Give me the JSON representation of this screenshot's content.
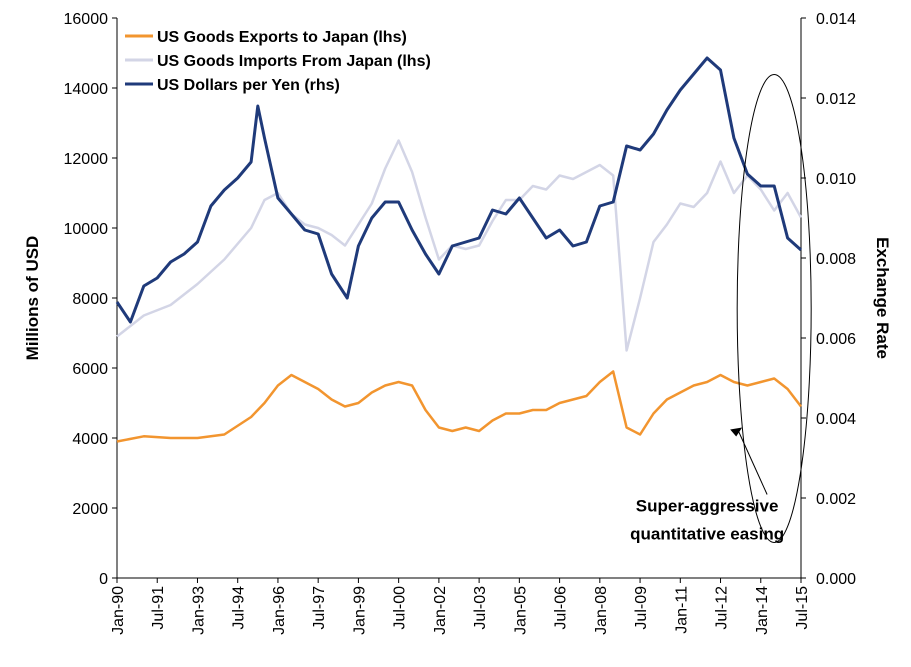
{
  "chart_data": {
    "type": "line",
    "title": "",
    "ylabel": "Millions of USD",
    "y2label": "Exchange Rate",
    "ylim": [
      0,
      16000
    ],
    "y2lim": [
      0,
      0.014
    ],
    "yticks": [
      "0",
      "2000",
      "4000",
      "6000",
      "8000",
      "10000",
      "12000",
      "14000",
      "16000"
    ],
    "y2ticks": [
      "0.000",
      "0.002",
      "0.004",
      "0.006",
      "0.008",
      "0.010",
      "0.012",
      "0.014"
    ],
    "xticks": [
      "Jan-90",
      "Jul-91",
      "Jan-93",
      "Jul-94",
      "Jan-96",
      "Jul-97",
      "Jan-99",
      "Jul-00",
      "Jan-02",
      "Jul-03",
      "Jan-05",
      "Jul-06",
      "Jan-08",
      "Jul-09",
      "Jan-11",
      "Jul-12",
      "Jan-14",
      "Jul-15"
    ],
    "xlim": [
      "Jan-90",
      "Jul-15"
    ],
    "grid": false,
    "legend_position": "top-left",
    "series": [
      {
        "name": "US Goods Exports to Japan (lhs)",
        "axis": "left",
        "color": "#F2952F",
        "x": [
          "Jan-90",
          "Jan-91",
          "Jan-92",
          "Jan-93",
          "Jan-94",
          "Jan-95",
          "Jul-95",
          "Jan-96",
          "Jul-96",
          "Jan-97",
          "Jul-97",
          "Jan-98",
          "Jul-98",
          "Jan-99",
          "Jul-99",
          "Jan-00",
          "Jul-00",
          "Jan-01",
          "Jul-01",
          "Jan-02",
          "Jul-02",
          "Jan-03",
          "Jul-03",
          "Jan-04",
          "Jul-04",
          "Jan-05",
          "Jul-05",
          "Jan-06",
          "Jul-06",
          "Jan-07",
          "Jul-07",
          "Jan-08",
          "Jul-08",
          "Jan-09",
          "Jul-09",
          "Jan-10",
          "Jul-10",
          "Jan-11",
          "Jul-11",
          "Jan-12",
          "Jul-12",
          "Jan-13",
          "Jul-13",
          "Jan-14",
          "Jul-14",
          "Jan-15",
          "Jul-15"
        ],
        "values": [
          3900,
          4050,
          4000,
          4000,
          4100,
          4600,
          5000,
          5500,
          5800,
          5600,
          5400,
          5100,
          4900,
          5000,
          5300,
          5500,
          5600,
          5500,
          4800,
          4300,
          4200,
          4300,
          4200,
          4500,
          4700,
          4700,
          4800,
          4800,
          5000,
          5100,
          5200,
          5600,
          5900,
          4300,
          4100,
          4700,
          5100,
          5300,
          5500,
          5600,
          5800,
          5600,
          5500,
          5600,
          5700,
          5400,
          4900
        ]
      },
      {
        "name": "US Goods Imports From Japan (lhs)",
        "axis": "left",
        "color": "#D3D5E6",
        "x": [
          "Jan-90",
          "Jan-91",
          "Jan-92",
          "Jan-93",
          "Jan-94",
          "Jan-95",
          "Jul-95",
          "Jan-96",
          "Jul-96",
          "Jan-97",
          "Jul-97",
          "Jan-98",
          "Jul-98",
          "Jan-99",
          "Jul-99",
          "Jan-00",
          "Jul-00",
          "Jan-01",
          "Jul-01",
          "Jan-02",
          "Jul-02",
          "Jan-03",
          "Jul-03",
          "Jan-04",
          "Jul-04",
          "Jan-05",
          "Jul-05",
          "Jan-06",
          "Jul-06",
          "Jan-07",
          "Jul-07",
          "Jan-08",
          "Jul-08",
          "Jan-09",
          "Jul-09",
          "Jan-10",
          "Jul-10",
          "Jan-11",
          "Jul-11",
          "Jan-12",
          "Jul-12",
          "Jan-13",
          "Jul-13",
          "Jan-14",
          "Jul-14",
          "Jan-15",
          "Jul-15"
        ],
        "values": [
          6900,
          7500,
          7800,
          8400,
          9100,
          10000,
          10800,
          11000,
          10400,
          10100,
          10000,
          9800,
          9500,
          10100,
          10700,
          11700,
          12500,
          11600,
          10300,
          9100,
          9500,
          9400,
          9500,
          10200,
          10800,
          10800,
          11200,
          11100,
          11500,
          11400,
          11600,
          11800,
          11500,
          6500,
          8000,
          9600,
          10100,
          10700,
          10600,
          11000,
          11900,
          11000,
          11500,
          11100,
          10500,
          11000,
          10300
        ]
      },
      {
        "name": "US Dollars per Yen (rhs)",
        "axis": "right",
        "color": "#1F3A7A",
        "x": [
          "Jan-90",
          "Jul-90",
          "Jan-91",
          "Jul-91",
          "Jan-92",
          "Jul-92",
          "Jan-93",
          "Jul-93",
          "Jan-94",
          "Jul-94",
          "Jan-95",
          "Apr-95",
          "Jul-95",
          "Jan-96",
          "Jul-96",
          "Jan-97",
          "Jul-97",
          "Jan-98",
          "Aug-98",
          "Jan-99",
          "Jul-99",
          "Jan-00",
          "Jul-00",
          "Jan-01",
          "Jul-01",
          "Jan-02",
          "Jul-02",
          "Jan-03",
          "Jul-03",
          "Jan-04",
          "Jul-04",
          "Jan-05",
          "Jul-05",
          "Jan-06",
          "Jul-06",
          "Jan-07",
          "Jul-07",
          "Jan-08",
          "Jul-08",
          "Jan-09",
          "Jul-09",
          "Jan-10",
          "Jul-10",
          "Jan-11",
          "Jul-11",
          "Jan-12",
          "Jul-12",
          "Jan-13",
          "Jul-13",
          "Jan-14",
          "Jul-14",
          "Jan-15",
          "Jul-15"
        ],
        "values": [
          0.0069,
          0.0064,
          0.0073,
          0.0075,
          0.0079,
          0.0081,
          0.0084,
          0.0093,
          0.0097,
          0.01,
          0.0104,
          0.0118,
          0.011,
          0.0095,
          0.0091,
          0.0087,
          0.0086,
          0.0076,
          0.007,
          0.0083,
          0.009,
          0.0094,
          0.0094,
          0.0087,
          0.0081,
          0.0076,
          0.0083,
          0.0084,
          0.0085,
          0.0092,
          0.0091,
          0.0095,
          0.009,
          0.0085,
          0.0087,
          0.0083,
          0.0084,
          0.0093,
          0.0094,
          0.0108,
          0.0107,
          0.0111,
          0.0117,
          0.0122,
          0.0126,
          0.013,
          0.0127,
          0.011,
          0.0101,
          0.0098,
          0.0098,
          0.0085,
          0.0082
        ]
      }
    ],
    "annotations": [
      {
        "text": "Super-aggressive",
        "x": "Jan-12",
        "y": 1900
      },
      {
        "text": "quantitative easing",
        "x": "Jan-12",
        "y": 1100
      }
    ],
    "highlight": {
      "shape": "ellipse",
      "x_center": "Jul-14",
      "y_center": 7700
    }
  }
}
